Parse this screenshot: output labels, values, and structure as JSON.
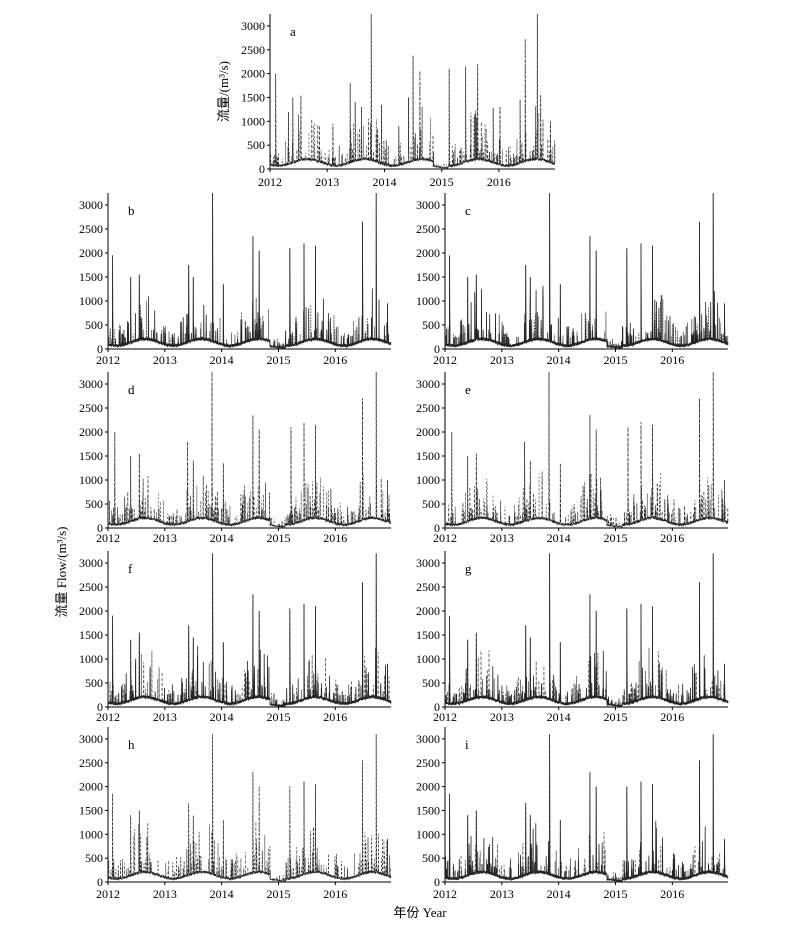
{
  "figure": {
    "common_ylabel": "流量 Flow/(m³/s)",
    "common_xlabel": "年份 Year",
    "line_color": "#222222"
  },
  "chart_data": [
    {
      "type": "line",
      "label": "a",
      "ylabel": "流量/(m³/s)",
      "ylim": [
        0,
        3250
      ],
      "xlim": [
        2012.0,
        2016.98
      ],
      "yticks": [
        0,
        500,
        1000,
        1500,
        2000,
        2500,
        3000
      ],
      "xticks": [
        "2012",
        "2013",
        "2014",
        "2015",
        "2016"
      ],
      "peaks": [
        [
          2012.1,
          2000
        ],
        [
          2012.4,
          1500
        ],
        [
          2012.54,
          1550
        ],
        [
          2012.32,
          1200
        ],
        [
          2013.1,
          950
        ],
        [
          2013.4,
          1800
        ],
        [
          2013.49,
          1400
        ],
        [
          2013.6,
          1300
        ],
        [
          2013.77,
          3250
        ],
        [
          2013.95,
          1350
        ],
        [
          2014.25,
          900
        ],
        [
          2014.42,
          1500
        ],
        [
          2014.5,
          2380
        ],
        [
          2014.62,
          2050
        ],
        [
          2015.13,
          2100
        ],
        [
          2015.42,
          2150
        ],
        [
          2015.63,
          2200
        ],
        [
          2015.9,
          1280
        ],
        [
          2016.02,
          1300
        ],
        [
          2016.37,
          1450
        ],
        [
          2016.46,
          2730
        ],
        [
          2016.67,
          3250
        ],
        [
          2016.73,
          1550
        ],
        [
          2016.9,
          1000
        ]
      ]
    },
    {
      "type": "line",
      "label": "b",
      "ylim": [
        0,
        3250
      ],
      "xlim": [
        2012.0,
        2016.98
      ],
      "yticks": [
        0,
        500,
        1000,
        1500,
        2000,
        2500,
        3000
      ],
      "xticks": [
        "2012",
        "2013",
        "2014",
        "2015",
        "2016"
      ],
      "peaks": [
        [
          2012.08,
          1950
        ],
        [
          2012.4,
          1500
        ],
        [
          2012.55,
          1550
        ],
        [
          2013.42,
          1750
        ],
        [
          2013.5,
          1500
        ],
        [
          2013.84,
          3250
        ],
        [
          2014.03,
          1350
        ],
        [
          2014.55,
          2350
        ],
        [
          2014.66,
          2050
        ],
        [
          2015.2,
          2100
        ],
        [
          2015.45,
          2200
        ],
        [
          2015.65,
          2150
        ],
        [
          2016.48,
          2650
        ],
        [
          2016.72,
          3250
        ],
        [
          2016.92,
          950
        ]
      ]
    },
    {
      "type": "line",
      "label": "c",
      "ylim": [
        0,
        3250
      ],
      "xlim": [
        2012.0,
        2016.98
      ],
      "yticks": [
        0,
        500,
        1000,
        1500,
        2000,
        2500,
        3000
      ],
      "xticks": [
        "2012",
        "2013",
        "2014",
        "2015",
        "2016"
      ],
      "peaks": [
        [
          2012.08,
          1950
        ],
        [
          2012.4,
          1500
        ],
        [
          2012.55,
          1550
        ],
        [
          2013.42,
          1750
        ],
        [
          2013.5,
          1500
        ],
        [
          2013.84,
          3250
        ],
        [
          2014.03,
          1350
        ],
        [
          2014.55,
          2350
        ],
        [
          2014.66,
          2050
        ],
        [
          2015.2,
          2100
        ],
        [
          2015.45,
          2200
        ],
        [
          2015.65,
          2150
        ],
        [
          2016.48,
          2650
        ],
        [
          2016.72,
          3250
        ],
        [
          2016.92,
          950
        ]
      ]
    },
    {
      "type": "line",
      "label": "d",
      "ylim": [
        0,
        3250
      ],
      "xlim": [
        2012.0,
        2016.98
      ],
      "yticks": [
        0,
        500,
        1000,
        1500,
        2000,
        2500,
        3000
      ],
      "xticks": [
        "2012",
        "2013",
        "2014",
        "2015",
        "2016"
      ],
      "peaks": [
        [
          2012.12,
          2000
        ],
        [
          2012.4,
          1500
        ],
        [
          2012.55,
          1550
        ],
        [
          2013.4,
          1800
        ],
        [
          2013.5,
          1400
        ],
        [
          2013.83,
          3250
        ],
        [
          2014.03,
          1350
        ],
        [
          2014.55,
          2350
        ],
        [
          2014.66,
          2050
        ],
        [
          2015.22,
          2100
        ],
        [
          2015.45,
          2200
        ],
        [
          2015.65,
          2150
        ],
        [
          2016.48,
          2700
        ],
        [
          2016.72,
          3250
        ],
        [
          2016.92,
          1000
        ]
      ]
    },
    {
      "type": "line",
      "label": "e",
      "ylim": [
        0,
        3250
      ],
      "xlim": [
        2012.0,
        2016.98
      ],
      "yticks": [
        0,
        500,
        1000,
        1500,
        2000,
        2500,
        3000
      ],
      "xticks": [
        "2012",
        "2013",
        "2014",
        "2015",
        "2016"
      ],
      "peaks": [
        [
          2012.12,
          2000
        ],
        [
          2012.4,
          1500
        ],
        [
          2012.55,
          1550
        ],
        [
          2013.4,
          1800
        ],
        [
          2013.5,
          1400
        ],
        [
          2013.83,
          3250
        ],
        [
          2014.03,
          1350
        ],
        [
          2014.55,
          2350
        ],
        [
          2014.66,
          2050
        ],
        [
          2015.22,
          2100
        ],
        [
          2015.45,
          2200
        ],
        [
          2015.65,
          2150
        ],
        [
          2016.48,
          2700
        ],
        [
          2016.72,
          3250
        ],
        [
          2016.92,
          1000
        ]
      ]
    },
    {
      "type": "line",
      "label": "f",
      "ylim": [
        0,
        3250
      ],
      "xlim": [
        2012.0,
        2016.98
      ],
      "yticks": [
        0,
        500,
        1000,
        1500,
        2000,
        2500,
        3000
      ],
      "xticks": [
        "2012",
        "2013",
        "2014",
        "2015",
        "2016"
      ],
      "peaks": [
        [
          2012.08,
          1900
        ],
        [
          2012.4,
          1400
        ],
        [
          2012.55,
          1550
        ],
        [
          2013.42,
          1700
        ],
        [
          2013.5,
          1450
        ],
        [
          2013.84,
          3200
        ],
        [
          2014.03,
          1350
        ],
        [
          2014.55,
          2350
        ],
        [
          2014.66,
          2000
        ],
        [
          2015.2,
          2050
        ],
        [
          2015.45,
          2150
        ],
        [
          2015.65,
          2100
        ],
        [
          2016.48,
          2600
        ],
        [
          2016.72,
          3200
        ],
        [
          2016.92,
          900
        ]
      ]
    },
    {
      "type": "line",
      "label": "g",
      "ylim": [
        0,
        3250
      ],
      "xlim": [
        2012.0,
        2016.98
      ],
      "yticks": [
        0,
        500,
        1000,
        1500,
        2000,
        2500,
        3000
      ],
      "xticks": [
        "2012",
        "2013",
        "2014",
        "2015",
        "2016"
      ],
      "peaks": [
        [
          2012.08,
          1900
        ],
        [
          2012.4,
          1400
        ],
        [
          2012.55,
          1550
        ],
        [
          2013.42,
          1700
        ],
        [
          2013.5,
          1450
        ],
        [
          2013.84,
          3200
        ],
        [
          2014.03,
          1350
        ],
        [
          2014.55,
          2350
        ],
        [
          2014.66,
          2000
        ],
        [
          2015.2,
          2050
        ],
        [
          2015.45,
          2150
        ],
        [
          2015.65,
          2100
        ],
        [
          2016.48,
          2600
        ],
        [
          2016.72,
          3200
        ],
        [
          2016.92,
          900
        ]
      ]
    },
    {
      "type": "line",
      "label": "h",
      "ylim": [
        0,
        3250
      ],
      "xlim": [
        2012.0,
        2016.98
      ],
      "yticks": [
        0,
        500,
        1000,
        1500,
        2000,
        2500,
        3000
      ],
      "xticks": [
        "2012",
        "2013",
        "2014",
        "2015",
        "2016"
      ],
      "peaks": [
        [
          2012.08,
          1850
        ],
        [
          2012.4,
          1400
        ],
        [
          2012.55,
          1500
        ],
        [
          2013.42,
          1650
        ],
        [
          2013.5,
          1400
        ],
        [
          2013.84,
          3100
        ],
        [
          2014.03,
          1300
        ],
        [
          2014.55,
          2300
        ],
        [
          2014.66,
          2000
        ],
        [
          2015.2,
          2000
        ],
        [
          2015.45,
          2100
        ],
        [
          2015.65,
          2050
        ],
        [
          2016.48,
          2550
        ],
        [
          2016.72,
          3100
        ],
        [
          2016.92,
          900
        ]
      ]
    },
    {
      "type": "line",
      "label": "i",
      "ylim": [
        0,
        3250
      ],
      "xlim": [
        2012.0,
        2016.98
      ],
      "yticks": [
        0,
        500,
        1000,
        1500,
        2000,
        2500,
        3000
      ],
      "xticks": [
        "2012",
        "2013",
        "2014",
        "2015",
        "2016"
      ],
      "peaks": [
        [
          2012.08,
          1850
        ],
        [
          2012.4,
          1400
        ],
        [
          2012.55,
          1500
        ],
        [
          2013.42,
          1650
        ],
        [
          2013.5,
          1400
        ],
        [
          2013.84,
          3100
        ],
        [
          2014.03,
          1300
        ],
        [
          2014.55,
          2300
        ],
        [
          2014.66,
          2000
        ],
        [
          2015.2,
          2000
        ],
        [
          2015.45,
          2100
        ],
        [
          2015.65,
          2050
        ],
        [
          2016.48,
          2550
        ],
        [
          2016.72,
          3100
        ],
        [
          2016.92,
          900
        ]
      ]
    }
  ]
}
